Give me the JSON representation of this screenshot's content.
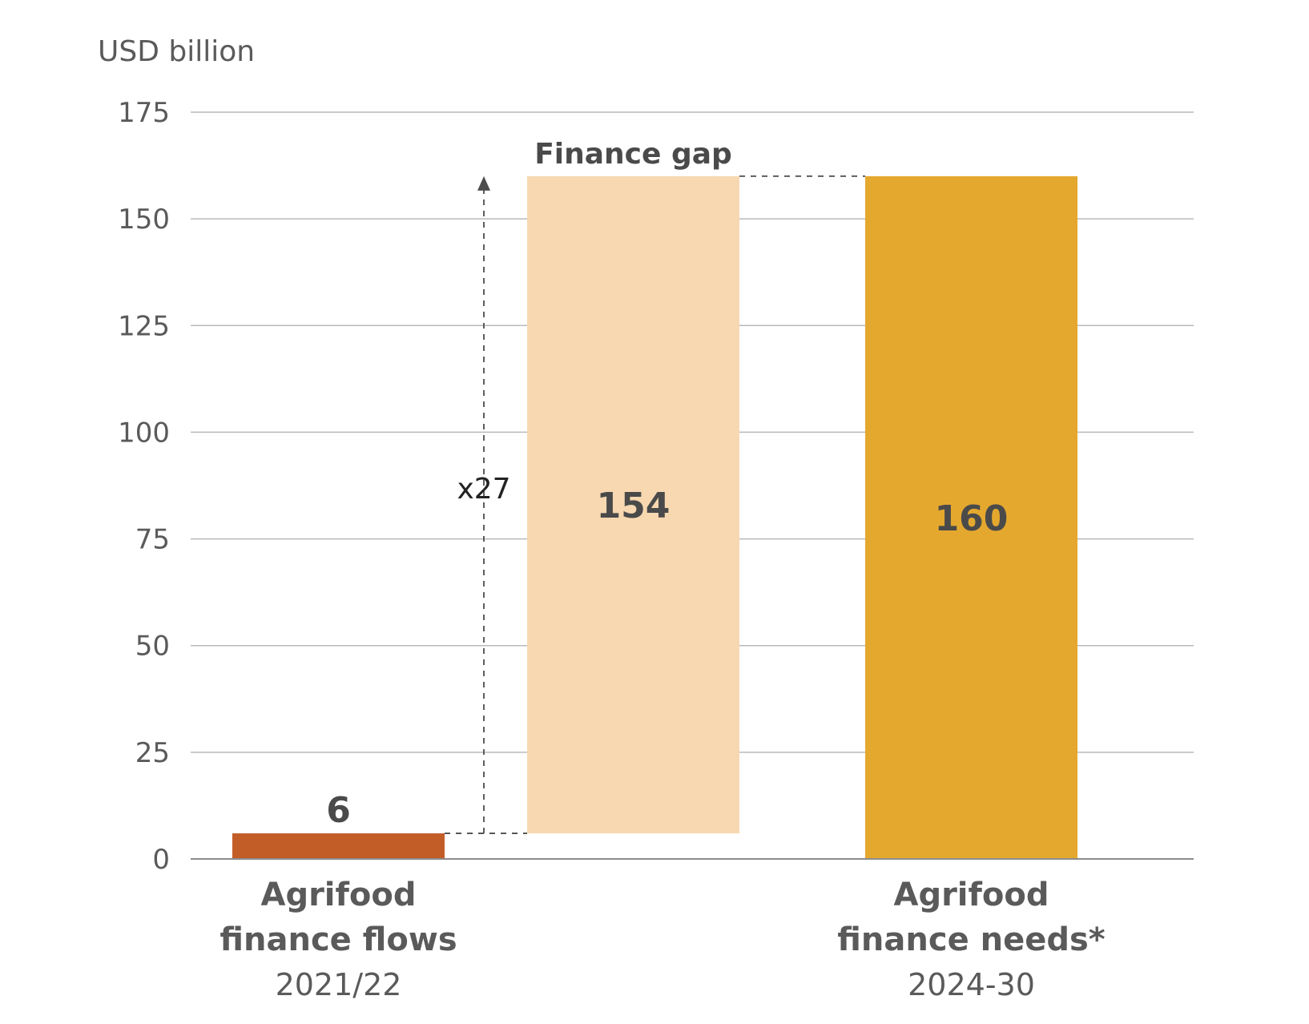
{
  "chart_data": {
    "type": "bar",
    "subtype": "waterfall",
    "ylabel": "USD billion",
    "ylim": [
      0,
      175
    ],
    "yticks": [
      0,
      25,
      50,
      75,
      100,
      125,
      150,
      175
    ],
    "grid": true,
    "bars": [
      {
        "id": "flows",
        "category_line1": "Agrifood",
        "category_line2": "finance flows",
        "category_line3": "2021/22",
        "base": 0,
        "value": 6,
        "label": "6",
        "color": "#c35d28"
      },
      {
        "id": "gap",
        "category_line1": "Finance gap",
        "base": 6,
        "value": 154,
        "label": "154",
        "color": "#f7d8b0"
      },
      {
        "id": "needs",
        "category_line1": "Agrifood",
        "category_line2": "finance needs*",
        "category_line3": "2024-30",
        "base": 0,
        "value": 160,
        "label": "160",
        "color": "#e5a82e"
      }
    ],
    "annotation": {
      "text": "x27",
      "from_value": 6,
      "to_value": 160
    }
  }
}
